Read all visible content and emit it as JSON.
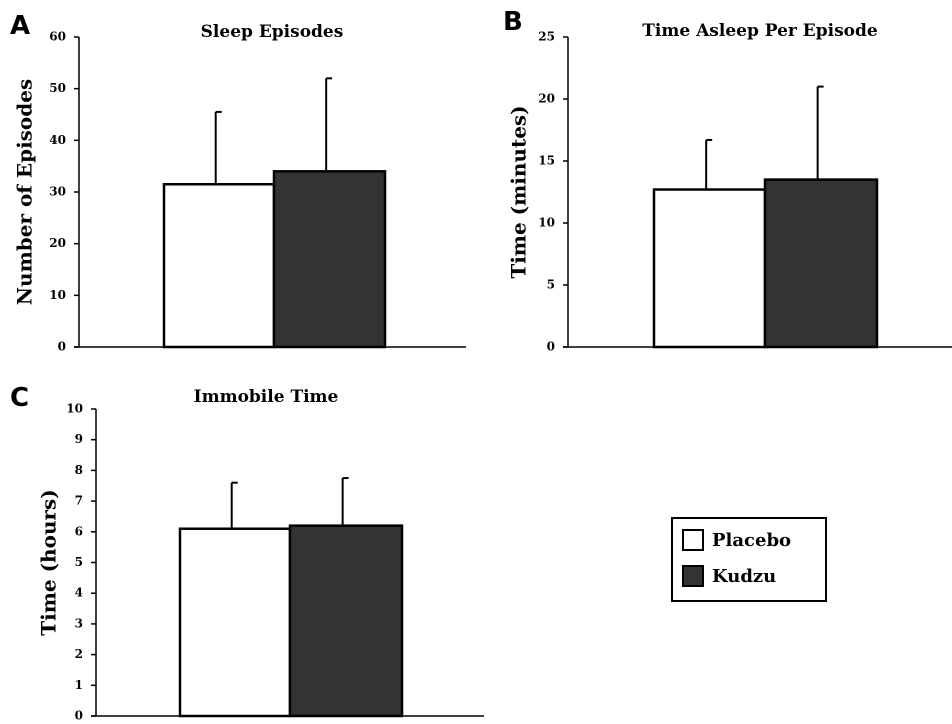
{
  "colors": {
    "placebo": "#ffffff",
    "kudzu": "#333333",
    "axis": "#000000"
  },
  "legend": {
    "position": "right-middle",
    "items": [
      {
        "label": "Placebo",
        "color": "#ffffff"
      },
      {
        "label": "Kudzu",
        "color": "#333333"
      }
    ]
  },
  "chart_data": [
    {
      "panel": "A",
      "type": "bar",
      "title": "Sleep Episodes",
      "xlabel": "",
      "ylabel": "Number of Episodes",
      "ylim": [
        0,
        60
      ],
      "yticks": [
        0,
        10,
        20,
        30,
        40,
        50,
        60
      ],
      "categories": [
        "Placebo",
        "Kudzu"
      ],
      "values": [
        31.5,
        34.0
      ],
      "errors": [
        14.0,
        18.0
      ]
    },
    {
      "panel": "B",
      "type": "bar",
      "title": "Time Asleep Per Episode",
      "xlabel": "",
      "ylabel": "Time (minutes)",
      "ylim": [
        0,
        25
      ],
      "yticks": [
        0,
        5,
        10,
        15,
        20,
        25
      ],
      "categories": [
        "Placebo",
        "Kudzu"
      ],
      "values": [
        12.7,
        13.5
      ],
      "errors": [
        4.0,
        7.5
      ]
    },
    {
      "panel": "C",
      "type": "bar",
      "title": "Immobile Time",
      "xlabel": "",
      "ylabel": "Time (hours)",
      "ylim": [
        0,
        10
      ],
      "yticks": [
        0,
        1,
        2,
        3,
        4,
        5,
        6,
        7,
        8,
        9,
        10
      ],
      "categories": [
        "Placebo",
        "Kudzu"
      ],
      "values": [
        6.1,
        6.2
      ],
      "errors": [
        1.5,
        1.55
      ]
    }
  ]
}
